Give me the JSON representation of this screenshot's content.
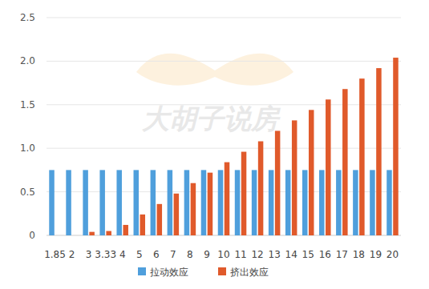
{
  "chart_data": {
    "type": "bar",
    "categories": [
      "1.85",
      "2",
      "3",
      "3.33",
      "4",
      "5",
      "6",
      "7",
      "8",
      "9",
      "10",
      "11",
      "12",
      "13",
      "14",
      "15",
      "16",
      "17",
      "18",
      "19",
      "20"
    ],
    "series": [
      {
        "name": "拉动效应",
        "color": "#4f9fdc",
        "values": [
          0.75,
          0.75,
          0.75,
          0.75,
          0.75,
          0.75,
          0.75,
          0.75,
          0.75,
          0.75,
          0.75,
          0.75,
          0.75,
          0.75,
          0.75,
          0.75,
          0.75,
          0.75,
          0.75,
          0.75,
          0.75
        ]
      },
      {
        "name": "挤出效应",
        "color": "#e05a2b",
        "values": [
          0,
          0,
          0.04,
          0.05,
          0.12,
          0.24,
          0.36,
          0.48,
          0.6,
          0.72,
          0.84,
          0.96,
          1.08,
          1.2,
          1.32,
          1.44,
          1.56,
          1.68,
          1.8,
          1.92,
          2.04
        ]
      }
    ],
    "ylim": [
      0,
      2.5
    ],
    "yticks": [
      0,
      0.5,
      {
        "value": 1,
        "label": "1.0"
      },
      {
        "value": 1.5,
        "label": "1.5"
      },
      {
        "value": 2,
        "label": "2.0"
      },
      {
        "value": 2.5,
        "label": "2.5"
      }
    ],
    "grid": true,
    "legend": "bottom",
    "annotations": [
      "大胡子说房"
    ]
  }
}
